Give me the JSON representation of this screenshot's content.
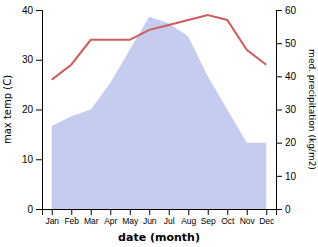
{
  "chart_data": {
    "type": "line",
    "xlabel": "date (month)",
    "ylabel": "max temp (C)",
    "y2label": "med. precipitation (kg/m2)",
    "categories": [
      "Jan",
      "Feb",
      "Mar",
      "Apr",
      "May",
      "Jun",
      "Jul",
      "Aug",
      "Sep",
      "Oct",
      "Nov",
      "Dec"
    ],
    "series": [
      {
        "type": "line",
        "color": "#cd5c5c",
        "values": [
          26,
          29,
          34,
          34,
          34,
          36,
          37,
          38,
          39,
          38,
          32,
          29
        ]
      },
      {
        "type": "area",
        "color": "#c5ccf0",
        "axis": "y2",
        "values": [
          25,
          28,
          30,
          38,
          48,
          58,
          56,
          52,
          40,
          30,
          20,
          20
        ]
      }
    ],
    "ylim": [
      0,
      40
    ],
    "yticks": [
      0,
      10,
      20,
      30,
      40
    ],
    "y2lim": [
      0,
      60
    ],
    "y2ticks": [
      0,
      10,
      20,
      30,
      40,
      50,
      60
    ]
  }
}
